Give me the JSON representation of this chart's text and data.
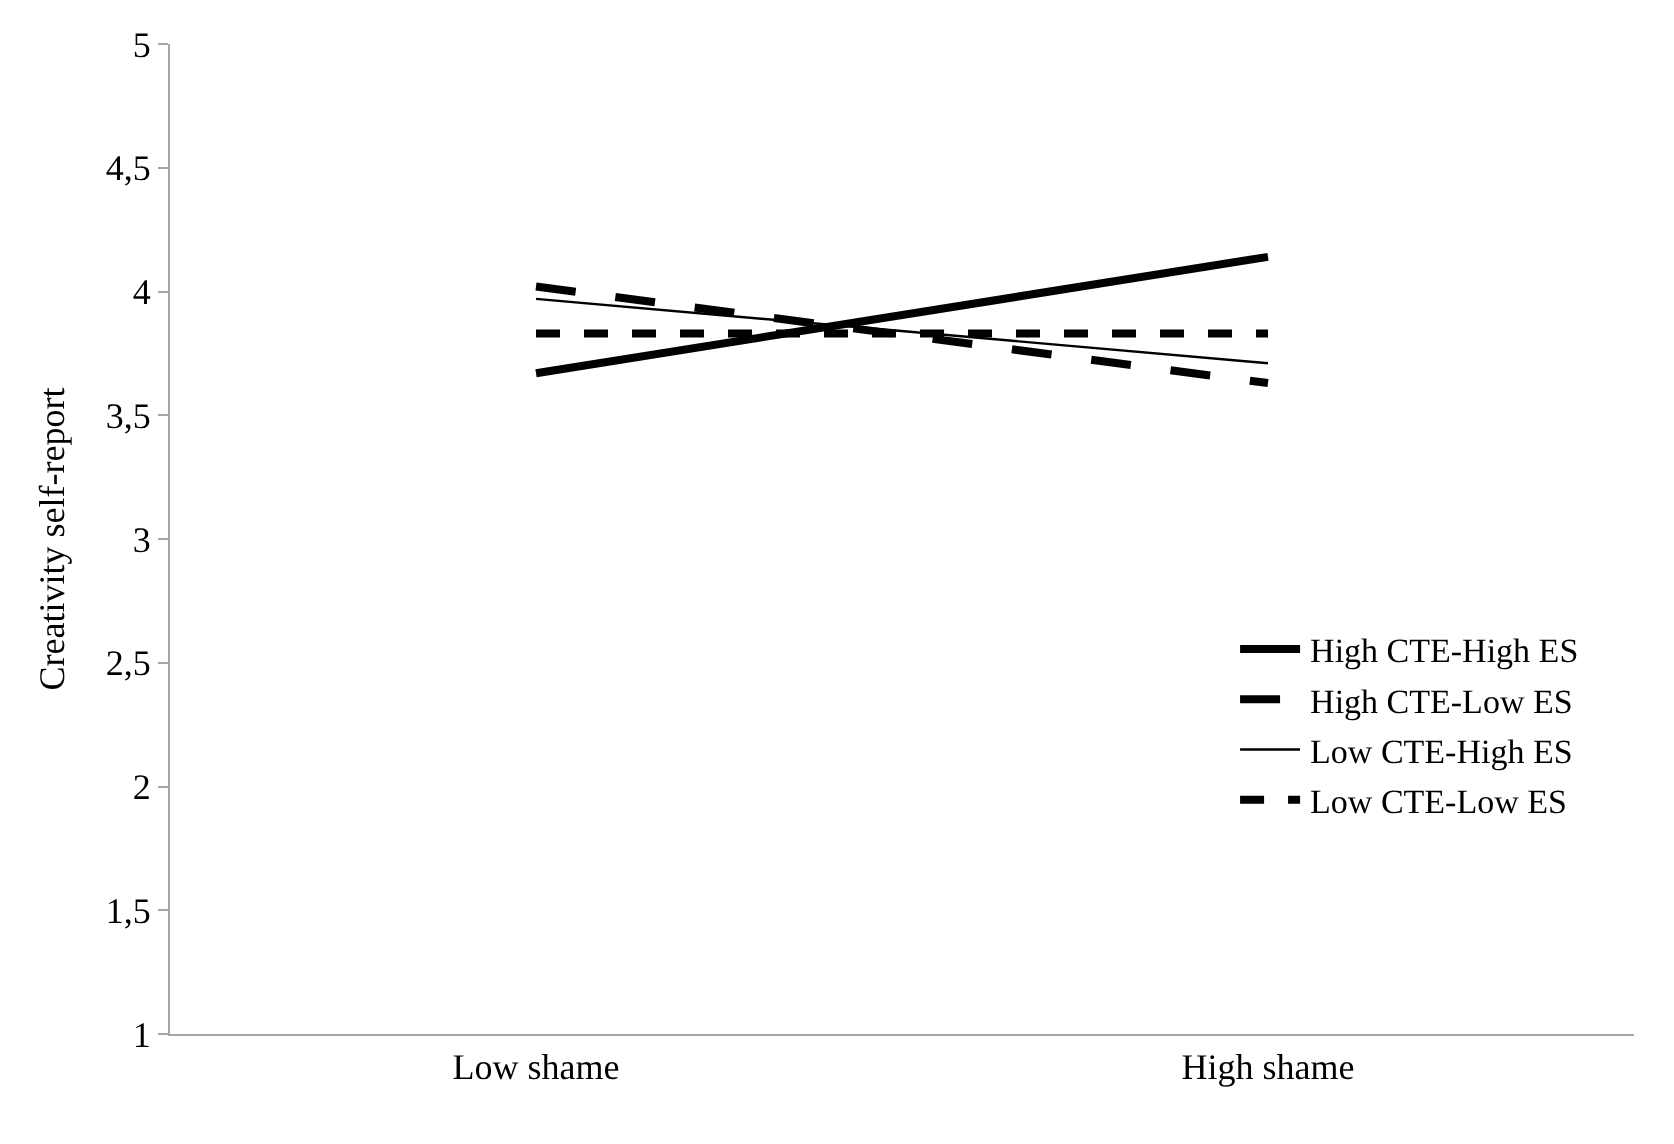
{
  "chart_data": {
    "type": "line",
    "ylabel": "Creativity self-report",
    "categories": [
      "Low shame",
      "High shame"
    ],
    "series": [
      {
        "name": "High CTE-High ES",
        "color": "#000000",
        "values": [
          3.67,
          4.14
        ],
        "line_style": "solid"
      },
      {
        "name": "High CTE-Low ES",
        "color": "#000000",
        "values": [
          4.02,
          3.63
        ],
        "line_style": "dashed"
      },
      {
        "name": "Low CTE-High ES",
        "color": "#000000",
        "values": [
          3.97,
          3.71
        ],
        "line_style": "solid"
      },
      {
        "name": "Low CTE-Low ES",
        "color": "#000000",
        "values": [
          3.83,
          3.83
        ],
        "line_style": "dotted"
      }
    ],
    "ylim": [
      1,
      5
    ],
    "yticks": [
      1,
      {
        "value": 1.5,
        "label": "1,5"
      },
      2,
      {
        "value": 2.5,
        "label": "2,5"
      },
      3,
      {
        "value": 3.5,
        "label": "3,5"
      },
      4,
      {
        "value": 4.5,
        "label": "4,5"
      },
      5
    ],
    "legend": "bottom right",
    "marker": "none"
  }
}
